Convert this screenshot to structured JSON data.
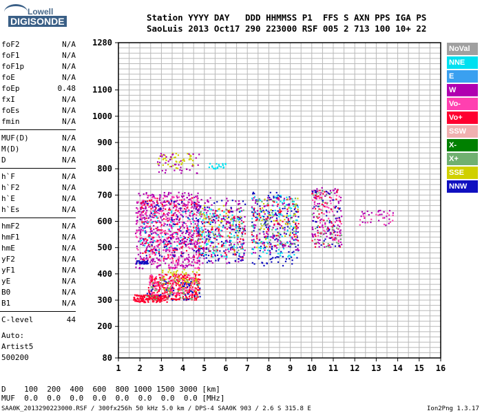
{
  "logo": {
    "line1": "Lowell",
    "line2": "DIGISONDE"
  },
  "header": {
    "row1": "Station YYYY DAY   DDD HHMMSS P1  FFS S AXN PPS IGA PS",
    "row2": "SaoLuis 2013 Oct17 290 223000 RSF 005 2 713 100 10+ 22"
  },
  "params": [
    {
      "name": "foF2",
      "value": "N/A"
    },
    {
      "name": "foF1",
      "value": "N/A"
    },
    {
      "name": "foF1p",
      "value": "N/A"
    },
    {
      "name": "foE",
      "value": "N/A"
    },
    {
      "name": "foEp",
      "value": "0.48"
    },
    {
      "name": "fxI",
      "value": "N/A"
    },
    {
      "name": "foEs",
      "value": "N/A"
    },
    {
      "name": "fmin",
      "value": "N/A"
    },
    {
      "name": "MUF(D)",
      "value": "N/A"
    },
    {
      "name": "M(D)",
      "value": "N/A"
    },
    {
      "name": "D",
      "value": "N/A"
    },
    {
      "name": "h`F",
      "value": "N/A"
    },
    {
      "name": "h`F2",
      "value": "N/A"
    },
    {
      "name": "h`E",
      "value": "N/A"
    },
    {
      "name": "h`Es",
      "value": "N/A"
    },
    {
      "name": "hmF2",
      "value": "N/A"
    },
    {
      "name": "hmF1",
      "value": "N/A"
    },
    {
      "name": "hmE",
      "value": "N/A"
    },
    {
      "name": "yF2",
      "value": "N/A"
    },
    {
      "name": "yF1",
      "value": "N/A"
    },
    {
      "name": "yE",
      "value": "N/A"
    },
    {
      "name": "B0",
      "value": "N/A"
    },
    {
      "name": "B1",
      "value": "N/A"
    },
    {
      "name": "C-level",
      "value": "44"
    }
  ],
  "auto": {
    "line1": "Auto:",
    "line2": "Artist5",
    "line3": "500200"
  },
  "legend": [
    {
      "label": "NoVal",
      "color": "#a0a0a0"
    },
    {
      "label": "NNE",
      "color": "#00e0f0"
    },
    {
      "label": "E",
      "color": "#3aa0f0"
    },
    {
      "label": "W",
      "color": "#b000b0"
    },
    {
      "label": "Vo-",
      "color": "#ff40b0"
    },
    {
      "label": "Vo+",
      "color": "#ff0030"
    },
    {
      "label": "SSW",
      "color": "#f0b0b0"
    },
    {
      "label": "X-",
      "color": "#008000"
    },
    {
      "label": "X+",
      "color": "#70b070"
    },
    {
      "label": "SSE",
      "color": "#d0d000"
    },
    {
      "label": "NNW",
      "color": "#1010c0"
    }
  ],
  "footer": {
    "d_row": "D    100  200  400  600  800 1000 1500 3000 [km]",
    "muf_row": "MUF  0.0  0.0  0.0  0.0  0.0  0.0  0.0  0.0 [MHz]",
    "file": "SAA0K_2013290223000.RSF / 300fx256h 50 kHz 5.0 km / DPS-4 SAA0K 903 / 2.6 S 315.8 E",
    "version": "Ion2Png 1.3.17"
  },
  "chart_data": {
    "type": "scatter",
    "xlim": [
      1,
      16
    ],
    "ylim": [
      80,
      1280
    ],
    "x_ticks": [
      1,
      2,
      3,
      4,
      5,
      6,
      7,
      8,
      9,
      10,
      11,
      12,
      13,
      14,
      15,
      16
    ],
    "y_ticks": [
      80,
      200,
      300,
      400,
      500,
      600,
      700,
      800,
      900,
      1000,
      1100,
      1280
    ],
    "grid": true,
    "clusters": [
      {
        "fmin": 1.7,
        "fmax": 3.3,
        "hmin": 292,
        "hmax": 320,
        "color": "#ff0030",
        "n": 160
      },
      {
        "fmin": 2.4,
        "fmax": 4.8,
        "hmin": 300,
        "hmax": 400,
        "color": "#ff0030",
        "n": 320
      },
      {
        "fmin": 3.0,
        "fmax": 4.8,
        "hmin": 330,
        "hmax": 420,
        "color": "#d0d000",
        "n": 70
      },
      {
        "fmin": 2.4,
        "fmax": 4.6,
        "hmin": 320,
        "hmax": 400,
        "color": "#ff40b0",
        "n": 80
      },
      {
        "fmin": 2.3,
        "fmax": 4.8,
        "hmin": 300,
        "hmax": 380,
        "color": "#70b070",
        "n": 50
      },
      {
        "fmin": 2.3,
        "fmax": 4.8,
        "hmin": 300,
        "hmax": 380,
        "color": "#1010c0",
        "n": 40
      },
      {
        "fmin": 1.8,
        "fmax": 4.8,
        "hmin": 420,
        "hmax": 710,
        "color": "#b000b0",
        "n": 520
      },
      {
        "fmin": 1.8,
        "fmax": 4.8,
        "hmin": 420,
        "hmax": 700,
        "color": "#ff40b0",
        "n": 260
      },
      {
        "fmin": 2.0,
        "fmax": 4.8,
        "hmin": 450,
        "hmax": 690,
        "color": "#ff0030",
        "n": 130
      },
      {
        "fmin": 2.0,
        "fmax": 4.8,
        "hmin": 460,
        "hmax": 680,
        "color": "#1010c0",
        "n": 80
      },
      {
        "fmin": 2.0,
        "fmax": 4.8,
        "hmin": 480,
        "hmax": 640,
        "color": "#00e0f0",
        "n": 50
      },
      {
        "fmin": 1.8,
        "fmax": 2.4,
        "hmin": 438,
        "hmax": 450,
        "color": "#1010c0",
        "n": 35
      },
      {
        "fmin": 2.8,
        "fmax": 4.5,
        "hmin": 800,
        "hmax": 860,
        "color": "#d0d000",
        "n": 40
      },
      {
        "fmin": 2.8,
        "fmax": 4.8,
        "hmin": 780,
        "hmax": 860,
        "color": "#b000b0",
        "n": 40
      },
      {
        "fmin": 4.7,
        "fmax": 6.9,
        "hmin": 440,
        "hmax": 690,
        "color": "#b000b0",
        "n": 170
      },
      {
        "fmin": 4.7,
        "fmax": 6.9,
        "hmin": 440,
        "hmax": 680,
        "color": "#1010c0",
        "n": 110
      },
      {
        "fmin": 4.7,
        "fmax": 6.9,
        "hmin": 460,
        "hmax": 650,
        "color": "#00e0f0",
        "n": 80
      },
      {
        "fmin": 4.7,
        "fmax": 6.9,
        "hmin": 460,
        "hmax": 650,
        "color": "#ff0030",
        "n": 70
      },
      {
        "fmin": 4.7,
        "fmax": 6.9,
        "hmin": 480,
        "hmax": 660,
        "color": "#70b070",
        "n": 40
      },
      {
        "fmin": 4.7,
        "fmax": 6.9,
        "hmin": 480,
        "hmax": 660,
        "color": "#d0d000",
        "n": 35
      },
      {
        "fmin": 5.2,
        "fmax": 6.0,
        "hmin": 800,
        "hmax": 820,
        "color": "#00e0f0",
        "n": 20
      },
      {
        "fmin": 7.2,
        "fmax": 9.4,
        "hmin": 430,
        "hmax": 710,
        "color": "#1010c0",
        "n": 150
      },
      {
        "fmin": 7.2,
        "fmax": 9.4,
        "hmin": 460,
        "hmax": 700,
        "color": "#00e0f0",
        "n": 110
      },
      {
        "fmin": 7.2,
        "fmax": 9.4,
        "hmin": 480,
        "hmax": 690,
        "color": "#b000b0",
        "n": 110
      },
      {
        "fmin": 7.2,
        "fmax": 9.4,
        "hmin": 500,
        "hmax": 690,
        "color": "#ff0030",
        "n": 60
      },
      {
        "fmin": 7.2,
        "fmax": 9.4,
        "hmin": 500,
        "hmax": 690,
        "color": "#70b070",
        "n": 50
      },
      {
        "fmin": 7.2,
        "fmax": 9.4,
        "hmin": 500,
        "hmax": 690,
        "color": "#d0d000",
        "n": 40
      },
      {
        "fmin": 10.0,
        "fmax": 11.4,
        "hmin": 500,
        "hmax": 730,
        "color": "#b000b0",
        "n": 110
      },
      {
        "fmin": 10.0,
        "fmax": 11.4,
        "hmin": 500,
        "hmax": 720,
        "color": "#ff0030",
        "n": 50
      },
      {
        "fmin": 10.0,
        "fmax": 11.4,
        "hmin": 500,
        "hmax": 720,
        "color": "#1010c0",
        "n": 40
      },
      {
        "fmin": 10.0,
        "fmax": 11.4,
        "hmin": 500,
        "hmax": 720,
        "color": "#70b070",
        "n": 40
      },
      {
        "fmin": 10.0,
        "fmax": 11.4,
        "hmin": 520,
        "hmax": 700,
        "color": "#ff40b0",
        "n": 40
      },
      {
        "fmin": 12.2,
        "fmax": 13.8,
        "hmin": 580,
        "hmax": 650,
        "color": "#b000b0",
        "n": 25
      },
      {
        "fmin": 12.2,
        "fmax": 13.8,
        "hmin": 580,
        "hmax": 640,
        "color": "#ff40b0",
        "n": 15
      }
    ]
  }
}
